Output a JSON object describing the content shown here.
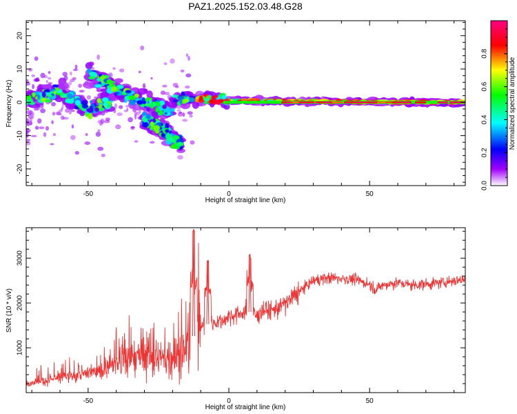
{
  "title": "PAZ1.2025.152.03.48.G28",
  "chart_data": [
    {
      "type": "heatmap",
      "xlabel": "Height of straight line (km)",
      "ylabel": "Frequency (Hz)",
      "xlim": [
        -72,
        84
      ],
      "ylim": [
        -25,
        24.5
      ],
      "xticks": [
        -50,
        0,
        50
      ],
      "yticks": [
        -20,
        -10,
        0,
        10,
        20
      ],
      "grid": false,
      "colorbar": {
        "label": "Normalized spectral amplitude",
        "range": [
          0,
          1
        ],
        "ticks": [
          "0.0",
          "0.2",
          "0.4",
          "0.6",
          "0.8"
        ],
        "colors": [
          "#ffffff",
          "#a000ff",
          "#0000ff",
          "#00ffff",
          "#00ff00",
          "#ffff00",
          "#ff0000",
          "#ff0080"
        ]
      },
      "ridges": [
        {
          "x": [
            -72,
            -60,
            -50,
            -42
          ],
          "y": [
            1,
            3,
            -2,
            0
          ]
        },
        {
          "x": [
            -50,
            -40,
            -30,
            -20
          ],
          "y": [
            9,
            4,
            0,
            -3
          ]
        },
        {
          "x": [
            -30,
            -22,
            -17
          ],
          "y": [
            -5,
            -9,
            -13
          ]
        },
        {
          "x": [
            -20,
            -10,
            0,
            20,
            84
          ],
          "y": [
            1,
            1,
            0.5,
            0.3,
            0
          ]
        }
      ]
    },
    {
      "type": "line",
      "xlabel": "Height of straight line (km)",
      "ylabel": "SNR (10 * v/v)",
      "xlim": [
        -72,
        84
      ],
      "ylim": [
        0,
        3680
      ],
      "xticks": [
        -50,
        0,
        50
      ],
      "yticks": [
        1000,
        2000,
        3000
      ],
      "grid": false,
      "color": "#ee3333",
      "x": [
        -72,
        -65,
        -60,
        -55,
        -50,
        -45,
        -40,
        -35,
        -30,
        -25,
        -20,
        -15,
        -13,
        -11,
        -8,
        -5,
        -2,
        0,
        3,
        5,
        7,
        10,
        12,
        15,
        20,
        25,
        30,
        35,
        40,
        45,
        50,
        52,
        55,
        60,
        65,
        70,
        75,
        80,
        84
      ],
      "y": [
        200,
        270,
        330,
        370,
        420,
        500,
        660,
        720,
        820,
        700,
        780,
        950,
        1200,
        1450,
        1520,
        1560,
        1620,
        1700,
        1750,
        1780,
        1820,
        1700,
        1850,
        1820,
        1980,
        2250,
        2500,
        2560,
        2550,
        2520,
        2420,
        2300,
        2400,
        2450,
        2400,
        2420,
        2450,
        2500,
        2530
      ],
      "spikes": [
        {
          "x": -12.5,
          "y": 3650
        },
        {
          "x": -7.5,
          "y": 2950
        },
        {
          "x": 7.5,
          "y": 3100
        }
      ]
    }
  ]
}
